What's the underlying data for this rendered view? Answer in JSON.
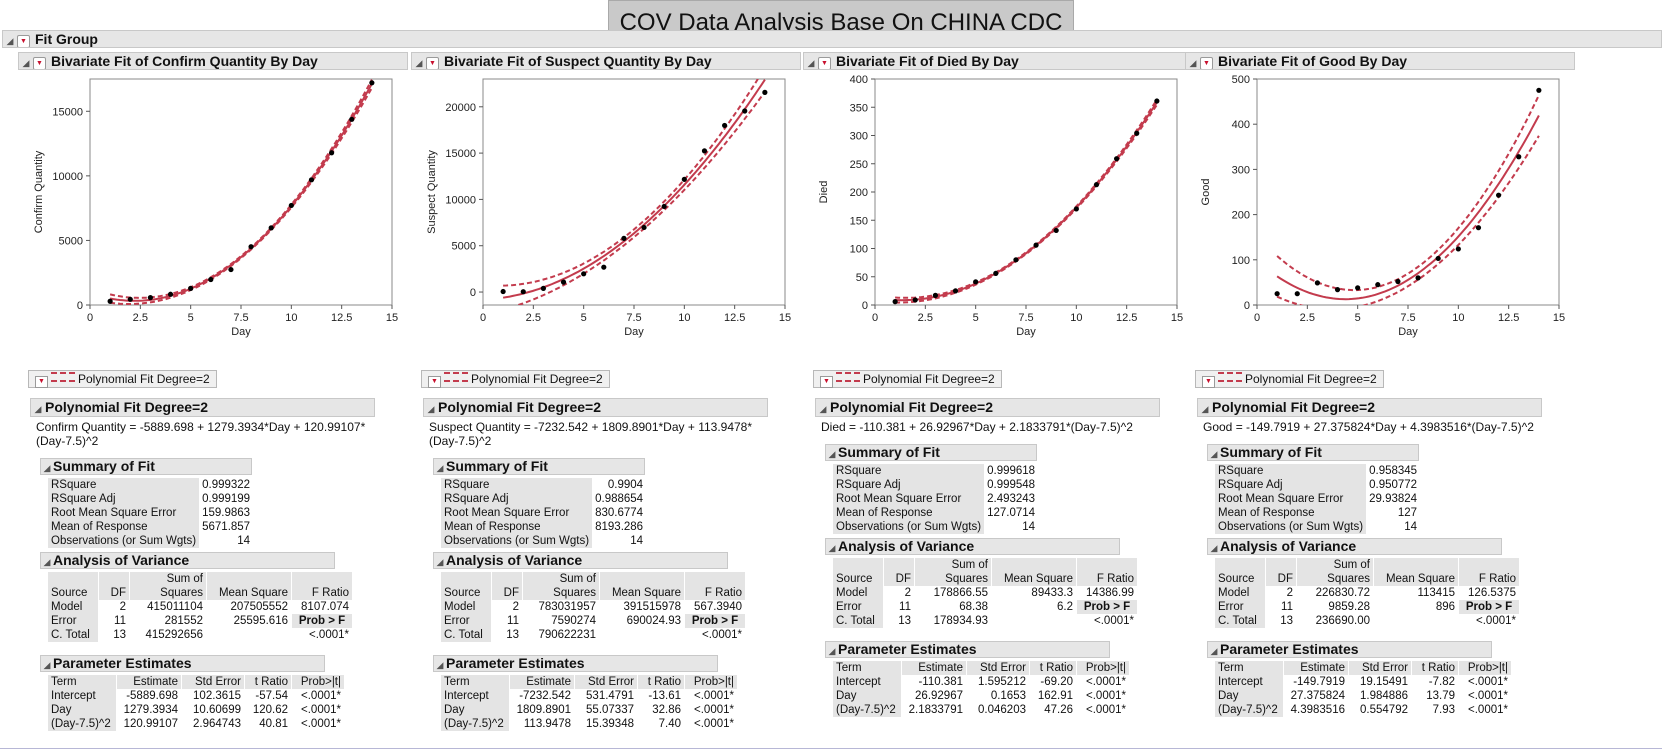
{
  "banner": "COV Data Analysis Base On CHINA CDC",
  "fit_group_label": "Fit Group",
  "colors": {
    "fit_line": "#c33b4d",
    "points": "#000000",
    "header_bg": "#e6e6e6"
  },
  "panels": [
    {
      "header": "Bivariate Fit of Confirm Quantity By Day",
      "legend_label": "Polynomial Fit Degree=2",
      "poly_header": "Polynomial Fit Degree=2",
      "equation": "Confirm Quantity = -5889.698 + 1279.3934*Day + 120.99107*(Day-7.5)^2",
      "sof_header": "Summary of Fit",
      "sof": [
        [
          "RSquare",
          "0.999322"
        ],
        [
          "RSquare Adj",
          "0.999199"
        ],
        [
          "Root Mean Square Error",
          "159.9863"
        ],
        [
          "Mean of Response",
          "5671.857"
        ],
        [
          "Observations (or Sum Wgts)",
          "14"
        ]
      ],
      "aov_header": "Analysis of Variance",
      "aov_cols": [
        "Source",
        "DF",
        "Sum of Squares",
        "Mean Square",
        "F Ratio"
      ],
      "aov_rows": [
        [
          "Model",
          "2",
          "415011104",
          "207505552",
          "8107.074"
        ],
        [
          "Error",
          "11",
          "281552",
          "25595.616",
          "Prob > F"
        ],
        [
          "C. Total",
          "13",
          "415292656",
          "",
          "<.0001*"
        ]
      ],
      "pe_header": "Parameter Estimates",
      "pe_cols": [
        "Term",
        "Estimate",
        "Std Error",
        "t Ratio",
        "Prob>|t|"
      ],
      "pe_rows": [
        [
          "Intercept",
          "-5889.698",
          "102.3615",
          "-57.54",
          "<.0001*"
        ],
        [
          "Day",
          "1279.3934",
          "10.60699",
          "120.62",
          "<.0001*"
        ],
        [
          "(Day-7.5)^2",
          "120.99107",
          "2.964743",
          "40.81",
          "<.0001*"
        ]
      ]
    },
    {
      "header": "Bivariate Fit of Suspect Quantity By Day",
      "legend_label": "Polynomial Fit Degree=2",
      "poly_header": "Polynomial Fit Degree=2",
      "equation": "Suspect Quantity = -7232.542 + 1809.8901*Day + 113.9478*(Day-7.5)^2",
      "sof_header": "Summary of Fit",
      "sof": [
        [
          "RSquare",
          "0.9904"
        ],
        [
          "RSquare Adj",
          "0.988654"
        ],
        [
          "Root Mean Square Error",
          "830.6774"
        ],
        [
          "Mean of Response",
          "8193.286"
        ],
        [
          "Observations (or Sum Wgts)",
          "14"
        ]
      ],
      "aov_header": "Analysis of Variance",
      "aov_cols": [
        "Source",
        "DF",
        "Sum of Squares",
        "Mean Square",
        "F Ratio"
      ],
      "aov_rows": [
        [
          "Model",
          "2",
          "783031957",
          "391515978",
          "567.3940"
        ],
        [
          "Error",
          "11",
          "7590274",
          "690024.93",
          "Prob > F"
        ],
        [
          "C. Total",
          "13",
          "790622231",
          "",
          "<.0001*"
        ]
      ],
      "pe_header": "Parameter Estimates",
      "pe_cols": [
        "Term",
        "Estimate",
        "Std Error",
        "t Ratio",
        "Prob>|t|"
      ],
      "pe_rows": [
        [
          "Intercept",
          "-7232.542",
          "531.4791",
          "-13.61",
          "<.0001*"
        ],
        [
          "Day",
          "1809.8901",
          "55.07337",
          "32.86",
          "<.0001*"
        ],
        [
          "(Day-7.5)^2",
          "113.9478",
          "15.39348",
          "7.40",
          "<.0001*"
        ]
      ]
    },
    {
      "header": "Bivariate Fit of  Died  By Day",
      "legend_label": "Polynomial Fit Degree=2",
      "poly_header": "Polynomial Fit Degree=2",
      "equation": "Died = -110.381 + 26.92967*Day + 2.1833791*(Day-7.5)^2",
      "sof_header": "Summary of Fit",
      "sof": [
        [
          "RSquare",
          "0.999618"
        ],
        [
          "RSquare Adj",
          "0.999548"
        ],
        [
          "Root Mean Square Error",
          "2.493243"
        ],
        [
          "Mean of Response",
          "127.0714"
        ],
        [
          "Observations (or Sum Wgts)",
          "14"
        ]
      ],
      "aov_header": "Analysis of Variance",
      "aov_cols": [
        "Source",
        "DF",
        "Sum of Squares",
        "Mean Square",
        "F Ratio"
      ],
      "aov_rows": [
        [
          "Model",
          "2",
          "178866.55",
          "89433.3",
          "14386.99"
        ],
        [
          "Error",
          "11",
          "68.38",
          "6.2",
          "Prob > F"
        ],
        [
          "C. Total",
          "13",
          "178934.93",
          "",
          "<.0001*"
        ]
      ],
      "pe_header": "Parameter Estimates",
      "pe_cols": [
        "Term",
        "Estimate",
        "Std Error",
        "t Ratio",
        "Prob>|t|"
      ],
      "pe_rows": [
        [
          "Intercept",
          "-110.381",
          "1.595212",
          "-69.20",
          "<.0001*"
        ],
        [
          "Day",
          "26.92967",
          "0.1653",
          "162.91",
          "<.0001*"
        ],
        [
          "(Day-7.5)^2",
          "2.1833791",
          "0.046203",
          "47.26",
          "<.0001*"
        ]
      ]
    },
    {
      "header": "Bivariate Fit of  Good  By Day",
      "legend_label": "Polynomial Fit Degree=2",
      "poly_header": "Polynomial Fit Degree=2",
      "equation": "Good = -149.7919 + 27.375824*Day + 4.3983516*(Day-7.5)^2",
      "sof_header": "Summary of Fit",
      "sof": [
        [
          "RSquare",
          "0.958345"
        ],
        [
          "RSquare Adj",
          "0.950772"
        ],
        [
          "Root Mean Square Error",
          "29.93824"
        ],
        [
          "Mean of Response",
          "127"
        ],
        [
          "Observations (or Sum Wgts)",
          "14"
        ]
      ],
      "aov_header": "Analysis of Variance",
      "aov_cols": [
        "Source",
        "DF",
        "Sum of Squares",
        "Mean Square",
        "F Ratio"
      ],
      "aov_rows": [
        [
          "Model",
          "2",
          "226830.72",
          "113415",
          "126.5375"
        ],
        [
          "Error",
          "11",
          "9859.28",
          "896",
          "Prob > F"
        ],
        [
          "C. Total",
          "13",
          "236690.00",
          "",
          "<.0001*"
        ]
      ],
      "pe_header": "Parameter Estimates",
      "pe_cols": [
        "Term",
        "Estimate",
        "Std Error",
        "t Ratio",
        "Prob>|t|"
      ],
      "pe_rows": [
        [
          "Intercept",
          "-149.7919",
          "19.15491",
          "-7.82",
          "<.0001*"
        ],
        [
          "Day",
          "27.375824",
          "1.984886",
          "13.79",
          "<.0001*"
        ],
        [
          "(Day-7.5)^2",
          "4.3983516",
          "0.554792",
          "7.93",
          "<.0001*"
        ]
      ]
    }
  ],
  "chart_data": [
    {
      "type": "scatter",
      "xlabel": "Day",
      "ylabel": "Confirm Quantity",
      "xlim": [
        0,
        15
      ],
      "ylim": [
        0,
        17500
      ],
      "xticks": [
        "0",
        "2.5",
        "5",
        "7.5",
        "10",
        "12.5",
        "15"
      ],
      "yticks": [
        "0",
        "5000",
        "10000",
        "15000"
      ],
      "x": [
        1,
        2,
        3,
        4,
        5,
        6,
        7,
        8,
        9,
        10,
        11,
        12,
        13,
        14
      ],
      "y": [
        291,
        440,
        571,
        830,
        1287,
        1975,
        2744,
        4515,
        5974,
        7711,
        9692,
        11791,
        14380,
        17205
      ],
      "fit": {
        "b0": -5889.698,
        "b1": 1279.3934,
        "b2": 120.99107,
        "center": 7.5,
        "band_halfwidth": [
          320,
          75
        ]
      },
      "grid": false
    },
    {
      "type": "scatter",
      "xlabel": "Day",
      "ylabel": "Suspect Quantity",
      "xlim": [
        0,
        15
      ],
      "ylim": [
        -1400,
        23000
      ],
      "xticks": [
        "0",
        "2.5",
        "5",
        "7.5",
        "10",
        "12.5",
        "15"
      ],
      "yticks": [
        "0",
        "5000",
        "10000",
        "15000",
        "20000"
      ],
      "x": [
        1,
        2,
        3,
        4,
        5,
        6,
        7,
        8,
        9,
        10,
        11,
        12,
        13,
        14
      ],
      "y": [
        54,
        37,
        393,
        1072,
        1965,
        2684,
        5794,
        6973,
        9239,
        12167,
        15238,
        17988,
        19544,
        21558
      ],
      "fit": {
        "b0": -7232.542,
        "b1": 1809.8901,
        "b2": 113.9478,
        "center": 7.5,
        "band_halfwidth": [
          1300,
          420
        ]
      },
      "grid": false
    },
    {
      "type": "scatter",
      "xlabel": "Day",
      "ylabel": "Died",
      "xlim": [
        0,
        15
      ],
      "ylim": [
        0,
        400
      ],
      "xticks": [
        "0",
        "2.5",
        "5",
        "7.5",
        "10",
        "12.5",
        "15"
      ],
      "yticks": [
        "0",
        "50",
        "100",
        "150",
        "200",
        "250",
        "300",
        "350",
        "400"
      ],
      "x": [
        1,
        2,
        3,
        4,
        5,
        6,
        7,
        8,
        9,
        10,
        11,
        12,
        13,
        14
      ],
      "y": [
        6,
        9,
        17,
        25,
        41,
        56,
        80,
        106,
        132,
        170,
        213,
        259,
        304,
        361
      ],
      "fit": {
        "b0": -110.381,
        "b1": 26.92967,
        "b2": 2.1833791,
        "center": 7.5,
        "band_halfwidth": [
          4.5,
          1.5
        ]
      },
      "grid": false
    },
    {
      "type": "scatter",
      "xlabel": "Day",
      "ylabel": "Good",
      "xlim": [
        0,
        15
      ],
      "ylim": [
        0,
        500
      ],
      "xticks": [
        "0",
        "2.5",
        "5",
        "7.5",
        "10",
        "12.5",
        "15"
      ],
      "yticks": [
        "0",
        "100",
        "200",
        "300",
        "400",
        "500"
      ],
      "x": [
        1,
        2,
        3,
        4,
        5,
        6,
        7,
        8,
        9,
        10,
        11,
        12,
        13,
        14
      ],
      "y": [
        25,
        25,
        49,
        34,
        38,
        45,
        52,
        60,
        103,
        124,
        171,
        243,
        328,
        475
      ],
      "fit": {
        "b0": -149.7919,
        "b1": 27.375824,
        "b2": 4.3983516,
        "center": 7.5,
        "band_halfwidth": [
          45,
          14
        ]
      },
      "grid": false
    }
  ]
}
